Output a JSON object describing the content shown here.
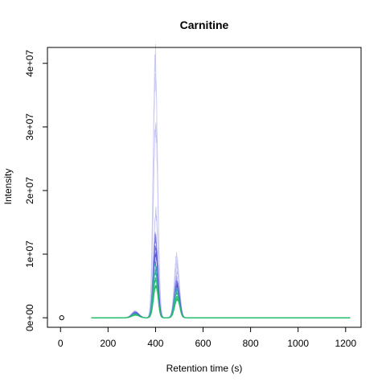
{
  "chart_data": {
    "type": "line",
    "title": "Carnitine",
    "xlabel": "Retention time (s)",
    "ylabel": "Intensity",
    "xlim": [
      -55,
      1265
    ],
    "ylim": [
      -1500000,
      42500000
    ],
    "x_ticks": [
      0,
      200,
      400,
      600,
      800,
      1000,
      1200
    ],
    "x_tick_labels": [
      "0",
      "200",
      "400",
      "600",
      "800",
      "1000",
      "1200"
    ],
    "y_ticks": [
      0,
      10000000,
      20000000,
      30000000,
      40000000
    ],
    "y_tick_labels": [
      "0e+00",
      "1e+07",
      "2e+07",
      "3e+07",
      "4e+07"
    ],
    "grid": false,
    "legend": "none",
    "baseline_range": [
      130,
      1220
    ],
    "peaks_rt": [
      315,
      400,
      490
    ],
    "marker": {
      "x": 5,
      "y": 0
    },
    "series": [
      {
        "color": "#c8c8f4",
        "peak_heights": [
          1100000,
          41000000,
          9800000
        ]
      },
      {
        "color": "#cdcdf6",
        "peak_heights": [
          900000,
          38000000,
          9000000
        ]
      },
      {
        "color": "#c3c3f3",
        "peak_heights": [
          1000000,
          30000000,
          8200000
        ]
      },
      {
        "color": "#b8b8f0",
        "peak_heights": [
          800000,
          16500000,
          7200000
        ]
      },
      {
        "color": "#a8a8ee",
        "peak_heights": [
          900000,
          13000000,
          6300000
        ]
      },
      {
        "color": "#8080e0",
        "peak_heights": [
          900000,
          12500000,
          5700000
        ]
      },
      {
        "color": "#6b6bd8",
        "peak_heights": [
          800000,
          11000000,
          5300000
        ]
      },
      {
        "color": "#5a5ad4",
        "peak_heights": [
          700000,
          10000000,
          5000000
        ]
      },
      {
        "color": "#3c9fc0",
        "peak_heights": [
          600000,
          8500000,
          4500000
        ]
      },
      {
        "color": "#30b090",
        "peak_heights": [
          500000,
          7200000,
          3900000
        ]
      },
      {
        "color": "#28c070",
        "peak_heights": [
          500000,
          6000000,
          3300000
        ]
      },
      {
        "color": "#20c060",
        "peak_heights": [
          400000,
          5000000,
          2900000
        ]
      }
    ]
  }
}
